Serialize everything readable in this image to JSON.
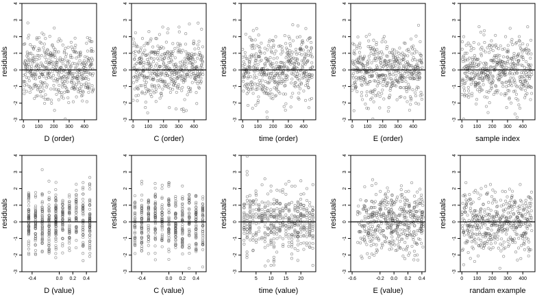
{
  "chart_data": [
    {
      "type": "scatter",
      "xlabel": "D (order)",
      "ylabel": "residuals",
      "xlim": [
        -10,
        480
      ],
      "ylim": [
        -3,
        4
      ],
      "xticks": [
        0,
        100,
        200,
        300,
        400
      ],
      "yticks": [
        -3,
        -2,
        -1,
        0,
        1,
        2,
        3,
        4
      ],
      "hline": 0,
      "pattern": "order",
      "n_points": 460
    },
    {
      "type": "scatter",
      "xlabel": "C (order)",
      "ylabel": "residuals",
      "xlim": [
        -10,
        480
      ],
      "ylim": [
        -3,
        4
      ],
      "xticks": [
        0,
        100,
        200,
        300,
        400
      ],
      "yticks": [
        -3,
        -2,
        -1,
        0,
        1,
        2,
        3,
        4
      ],
      "hline": 0,
      "pattern": "order",
      "n_points": 460
    },
    {
      "type": "scatter",
      "xlabel": "time (order)",
      "ylabel": "residuals",
      "xlim": [
        -10,
        480
      ],
      "ylim": [
        -3,
        4
      ],
      "xticks": [
        0,
        100,
        200,
        300,
        400
      ],
      "yticks": [
        -3,
        -2,
        -1,
        0,
        1,
        2,
        3,
        4
      ],
      "hline": 0,
      "pattern": "order",
      "n_points": 460
    },
    {
      "type": "scatter",
      "xlabel": "E (order)",
      "ylabel": "residuals",
      "xlim": [
        -10,
        480
      ],
      "ylim": [
        -3,
        4
      ],
      "xticks": [
        0,
        100,
        200,
        300,
        400
      ],
      "yticks": [
        -3,
        -2,
        -1,
        0,
        1,
        2,
        3,
        4
      ],
      "hline": 0,
      "pattern": "order",
      "n_points": 460
    },
    {
      "type": "scatter",
      "xlabel": "sample index",
      "ylabel": "residuals",
      "xlim": [
        -10,
        480
      ],
      "ylim": [
        -3,
        4
      ],
      "xticks": [
        0,
        100,
        200,
        300,
        400
      ],
      "yticks": [
        -3,
        -2,
        -1,
        0,
        1,
        2,
        3,
        4
      ],
      "hline": 0,
      "pattern": "order",
      "n_points": 460
    },
    {
      "type": "scatter",
      "xlabel": "D (value)",
      "ylabel": "residuals",
      "xlim": [
        -0.55,
        0.55
      ],
      "ylim": [
        -3,
        4
      ],
      "xticks": [
        -0.4,
        0.0,
        0.2,
        0.4
      ],
      "xtick_labels": [
        "-0.4",
        "0.0",
        "0.2",
        "0.4"
      ],
      "yticks": [
        -3,
        -2,
        -1,
        0,
        1,
        2,
        3,
        4
      ],
      "hline": 0,
      "pattern": "value",
      "x_levels": [
        -0.45,
        -0.35,
        -0.25,
        -0.15,
        -0.05,
        0.05,
        0.15,
        0.25,
        0.35,
        0.45
      ],
      "n_points": 460
    },
    {
      "type": "scatter",
      "xlabel": "C (value)",
      "ylabel": "residuals",
      "xlim": [
        -0.55,
        0.55
      ],
      "ylim": [
        -3,
        4
      ],
      "xticks": [
        -0.4,
        0.0,
        0.2,
        0.4
      ],
      "xtick_labels": [
        "-0.4",
        "0.0",
        "0.2",
        "0.4"
      ],
      "yticks": [
        -3,
        -2,
        -1,
        0,
        1,
        2,
        3,
        4
      ],
      "hline": 0,
      "pattern": "value",
      "x_levels": [
        -0.5,
        -0.4,
        -0.3,
        -0.2,
        -0.1,
        0.0,
        0.1,
        0.2,
        0.3,
        0.4,
        0.5
      ],
      "n_points": 460
    },
    {
      "type": "scatter",
      "xlabel": "time (value)",
      "ylabel": "residuals",
      "xlim": [
        0,
        25
      ],
      "ylim": [
        -3,
        4
      ],
      "xticks": [
        5,
        10,
        15,
        20
      ],
      "xtick_labels": [
        "5",
        "10",
        "15",
        "20"
      ],
      "yticks": [
        -3,
        -2,
        -1,
        0,
        1,
        2,
        3,
        4
      ],
      "hline": 0,
      "pattern": "value",
      "x_levels": [
        1,
        2,
        3,
        4,
        5,
        6,
        7,
        8,
        9,
        10,
        11,
        12,
        13,
        14,
        15,
        16,
        17,
        18,
        19,
        20,
        21,
        22,
        23,
        24
      ],
      "n_points": 460
    },
    {
      "type": "scatter",
      "xlabel": "E (value)",
      "ylabel": "residuals",
      "xlim": [
        -0.62,
        0.45
      ],
      "ylim": [
        -3,
        4
      ],
      "xticks": [
        -0.6,
        -0.2,
        0.0,
        0.2,
        0.4
      ],
      "xtick_labels": [
        "-0.6",
        "-0.2",
        "0.0",
        "0.2",
        "0.4"
      ],
      "yticks": [
        -3,
        -2,
        -1,
        0,
        1,
        2,
        3,
        4
      ],
      "hline": 0,
      "pattern": "continuous",
      "n_points": 460
    },
    {
      "type": "scatter",
      "xlabel": "randam example",
      "ylabel": "residuals",
      "xlim": [
        -10,
        480
      ],
      "ylim": [
        -3,
        4
      ],
      "xticks": [
        0,
        100,
        200,
        300,
        400
      ],
      "yticks": [
        -3,
        -2,
        -1,
        0,
        1,
        2,
        3,
        4
      ],
      "hline": 0,
      "pattern": "order",
      "n_points": 460
    }
  ]
}
